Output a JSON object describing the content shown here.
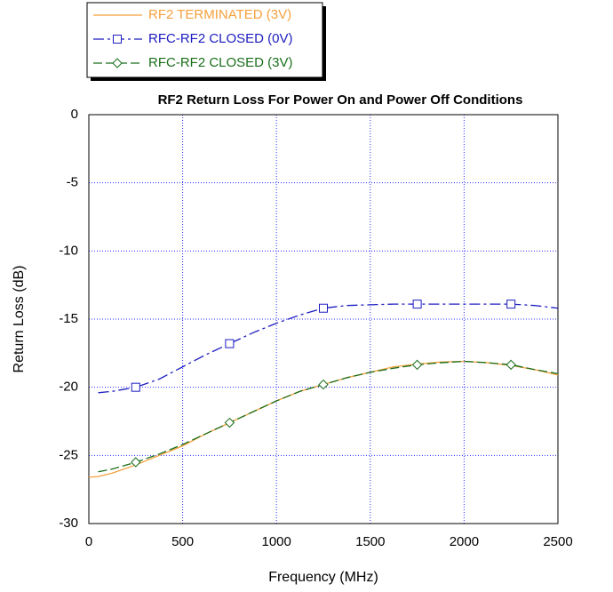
{
  "chart_data": {
    "type": "line",
    "title": "RF2 Return Loss For Power On and Power Off Conditions",
    "xlabel": "Frequency (MHz)",
    "ylabel": "Return Loss (dB)",
    "x": [
      0,
      50,
      125,
      250,
      375,
      500,
      625,
      750,
      875,
      1000,
      1125,
      1250,
      1375,
      1500,
      1625,
      1750,
      1875,
      2000,
      2125,
      2250,
      2375,
      2500
    ],
    "series": [
      {
        "name": "RF2 TERMINATED (3V)",
        "color": "#f5a03c",
        "values": [
          -26.6,
          -26.55,
          -26.3,
          -25.7,
          -25.0,
          -24.3,
          -23.4,
          -22.6,
          -21.8,
          -21.0,
          -20.3,
          -19.8,
          -19.3,
          -18.9,
          -18.5,
          -18.3,
          -18.15,
          -18.1,
          -18.2,
          -18.4,
          -18.7,
          -19.1
        ]
      },
      {
        "name": "RFC-RF2 CLOSED (0V)",
        "color": "#1c1cc0",
        "values": [
          null,
          -20.4,
          -20.3,
          -20.0,
          -19.4,
          -18.5,
          -17.6,
          -16.8,
          -16.0,
          -15.3,
          -14.7,
          -14.2,
          -14.0,
          -13.95,
          -13.9,
          -13.9,
          -13.9,
          -13.9,
          -13.9,
          -13.9,
          -14.0,
          -14.2
        ]
      },
      {
        "name": "RFC-RF2 CLOSED (3V)",
        "color": "#1a6e1a",
        "values": [
          null,
          -26.2,
          -26.0,
          -25.5,
          -24.9,
          -24.2,
          -23.4,
          -22.6,
          -21.8,
          -21.0,
          -20.3,
          -19.8,
          -19.3,
          -18.9,
          -18.6,
          -18.35,
          -18.2,
          -18.1,
          -18.2,
          -18.35,
          -18.7,
          -19.0
        ]
      }
    ],
    "xlim": [
      0,
      2500
    ],
    "xticks": [
      0,
      500,
      1000,
      1500,
      2000,
      2500
    ],
    "ylim": [
      -30,
      0
    ],
    "yticks": [
      0,
      -5,
      -10,
      -15,
      -20,
      -25,
      -30
    ],
    "grid": true,
    "legend": "top-left"
  }
}
